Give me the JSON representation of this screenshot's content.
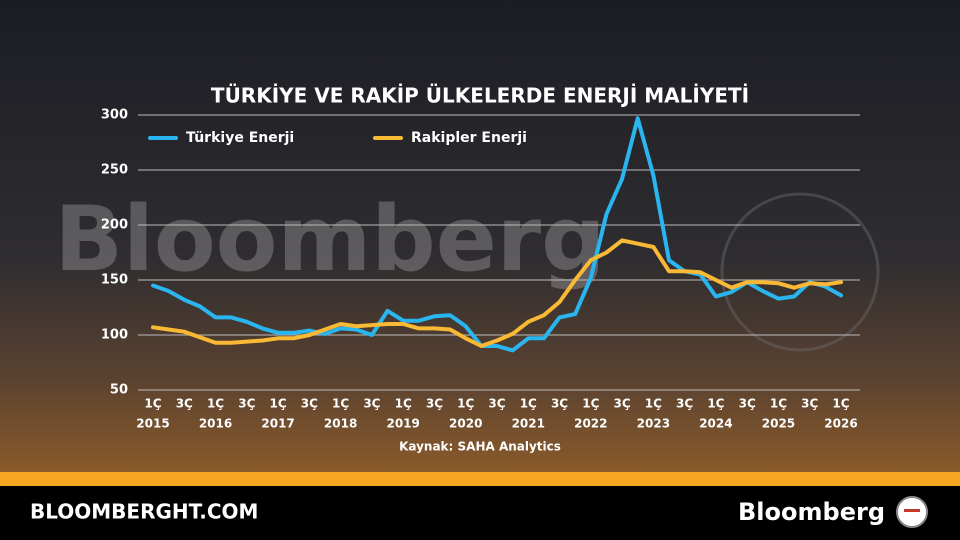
{
  "chart_data": {
    "type": "line",
    "title": "TÜRKİYE VE RAKİP ÜLKELERDE ENERJİ MALİYETİ",
    "source": "Kaynak: SAHA Analytics",
    "watermark": "Bloomberg",
    "categories": [
      "1Ç",
      null,
      "3Ç",
      null,
      "1Ç",
      null,
      "3Ç",
      null,
      "1Ç",
      null,
      "3Ç",
      null,
      "1Ç",
      null,
      "3Ç",
      null,
      "1Ç",
      null,
      "3Ç",
      null,
      "1Ç",
      null,
      "3Ç",
      null,
      "1Ç",
      null,
      "3Ç",
      null,
      "1Ç",
      null,
      "3Ç",
      null,
      "1Ç",
      null,
      "3Ç",
      null,
      "1Ç",
      null,
      "3Ç",
      null,
      "1Ç",
      null,
      "3Ç",
      null,
      "1Ç"
    ],
    "year_labels": [
      "2015",
      "2016",
      "2017",
      "2018",
      "2019",
      "2020",
      "2021",
      "2022",
      "2023",
      "2024",
      "2025",
      "2026"
    ],
    "series": [
      {
        "name": "Türkiye Enerji",
        "color": "#29b6f0",
        "values": [
          145,
          140,
          132,
          126,
          116,
          116,
          112,
          106,
          102,
          102,
          104,
          101,
          106,
          105,
          100,
          122,
          113,
          113,
          117,
          118,
          108,
          90,
          90,
          86,
          97,
          97,
          116,
          119,
          152,
          210,
          242,
          297,
          245,
          168,
          158,
          155,
          135,
          139,
          148,
          140,
          133,
          135,
          148,
          144,
          136
        ]
      },
      {
        "name": "Rakipler Enerji",
        "color": "#f9b934",
        "values": [
          107,
          105,
          103,
          98,
          93,
          93,
          94,
          95,
          97,
          97,
          100,
          105,
          110,
          108,
          109,
          110,
          110,
          106,
          106,
          105,
          97,
          90,
          95,
          101,
          112,
          118,
          130,
          150,
          168,
          175,
          186,
          183,
          180,
          158,
          158,
          157,
          150,
          143,
          148,
          148,
          147,
          143,
          147,
          146,
          148
        ]
      }
    ],
    "ylim": [
      50,
      300
    ],
    "yticks": [
      50,
      100,
      150,
      200,
      250,
      300
    ],
    "grid": true
  },
  "footer": {
    "site": "BLOOMBERGHT.COM",
    "brand": "Bloomberg"
  }
}
